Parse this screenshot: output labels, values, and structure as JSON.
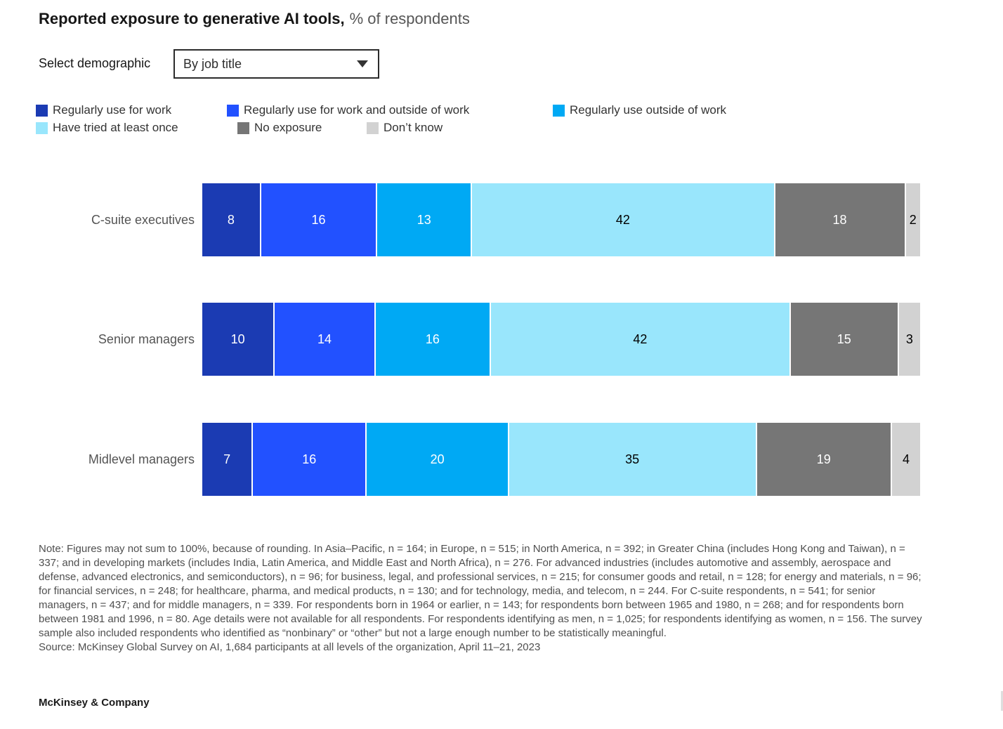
{
  "header": {
    "title_bold": "Reported exposure to generative AI tools,",
    "title_unit": "% of respondents"
  },
  "controls": {
    "label": "Select demographic",
    "dropdown_value": "By job title",
    "caret_icon": "chevron-down"
  },
  "legend": [
    {
      "label": "Regularly use for work",
      "color": "#1b3bb3"
    },
    {
      "label": "Regularly use for work and outside of work",
      "color": "#2251ff"
    },
    {
      "label": "Regularly use outside of work",
      "color": "#00a9f4"
    },
    {
      "label": "Have tried at least once",
      "color": "#99e6fc"
    },
    {
      "label": "No exposure",
      "color": "#767676"
    },
    {
      "label": "Don’t know",
      "color": "#d2d2d2"
    }
  ],
  "chart_data": {
    "type": "bar",
    "stacked": true,
    "orientation": "horizontal",
    "title": "Reported exposure to generative AI tools",
    "unit": "% of respondents",
    "xlim": [
      0,
      100
    ],
    "grid": false,
    "legend_position": "top",
    "categories": [
      "Regularly use for work",
      "Regularly use for work and outside of work",
      "Regularly use outside of work",
      "Have tried at least once",
      "No exposure",
      "Don’t know"
    ],
    "colors": [
      "#1b3bb3",
      "#2251ff",
      "#00a9f4",
      "#99e6fc",
      "#767676",
      "#d2d2d2"
    ],
    "label_text_colors": [
      "#ffffff",
      "#ffffff",
      "#ffffff",
      "#000000",
      "#ffffff",
      "#000000"
    ],
    "rows": [
      {
        "label": "C-suite executives",
        "values": [
          8,
          16,
          13,
          42,
          18,
          2
        ]
      },
      {
        "label": "Senior managers",
        "values": [
          10,
          14,
          16,
          42,
          15,
          3
        ]
      },
      {
        "label": "Midlevel managers",
        "values": [
          7,
          16,
          20,
          35,
          19,
          4
        ]
      }
    ]
  },
  "note": "Note: Figures may not sum to 100%, because of rounding. In Asia–Pacific, n = 164; in Europe, n = 515; in North America, n = 392; in Greater China (includes Hong Kong and Taiwan), n = 337; and in developing markets (includes India, Latin America, and Middle East and North Africa), n = 276. For advanced industries (includes automotive and assembly, aerospace and defense, advanced electronics, and semiconductors), n = 96; for business, legal, and professional services, n = 215; for consumer goods and retail, n = 128; for energy and materials, n = 96; for financial services, n = 248; for healthcare, pharma, and medical products, n = 130; and for technology, media, and telecom, n = 244. For C-suite respondents, n = 541; for senior managers, n = 437; and for middle managers, n = 339. For respondents born in 1964 or earlier, n = 143; for respondents born between 1965 and 1980, n = 268; and for respondents born between 1981 and 1996, n = 80. Age details were not available for all respondents. For respondents identifying as men, n = 1,025; for respondents identifying as women, n = 156. The survey sample also included respondents who identified as “nonbinary” or “other” but not a large enough number to be statistically meaningful.",
  "source": "Source: McKinsey Global Survey on AI, 1,684 participants at all levels of the organization, April 11–21, 2023",
  "footer": {
    "brand": "McKinsey & Company"
  }
}
